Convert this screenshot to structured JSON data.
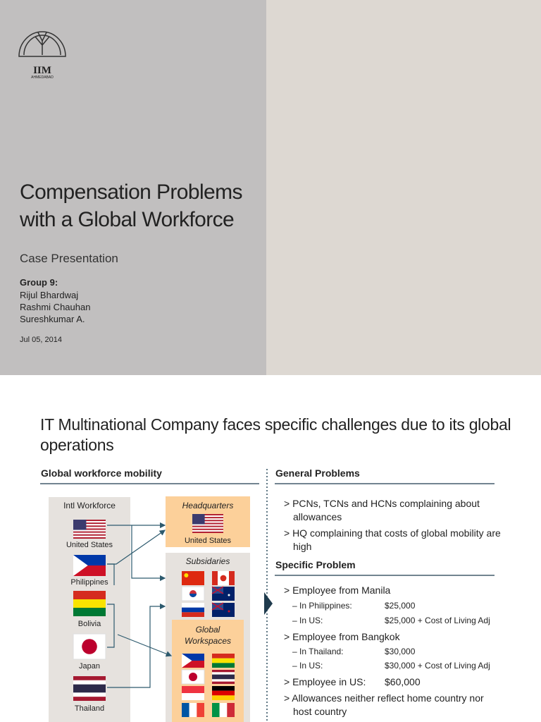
{
  "slide1": {
    "logo": {
      "name": "IIM",
      "city": "AHMEDABAD"
    },
    "title_lines": [
      "Compensation Problems",
      "with a Global Workforce"
    ],
    "subtitle": "Case Presentation",
    "group_label": "Group 9:",
    "members": [
      "Rijul Bhardwaj",
      "Rashmi Chauhan",
      "Sureshkumar A."
    ],
    "date": "Jul 05, 2014"
  },
  "slide2": {
    "title": "IT Multinational Company faces specific challenges due to its global operations",
    "left": {
      "heading": "Global workforce mobility",
      "intl_workforce": {
        "label": "Intl Workforce",
        "countries": [
          "United States",
          "Philippines",
          "Bolivia",
          "Japan",
          "Thailand"
        ]
      },
      "headquarters": {
        "label": "Headquarters",
        "country": "United States"
      },
      "subsidiaries": {
        "label": "Subsidaries"
      },
      "global_workspaces": {
        "label": "Global Workspaces"
      }
    },
    "general": {
      "heading": "General Problems",
      "items": [
        "> PCNs, TCNs and HCNs complaining about allowances",
        "> HQ complaining that costs of global mobility are high"
      ]
    },
    "specific": {
      "heading": "Specific Problem",
      "items": [
        {
          "text": "> Employee from Manila",
          "rows": [
            [
              "– In Philippines:",
              "$25,000"
            ],
            [
              "– In US:",
              "$25,000 + Cost of Living Adj"
            ]
          ]
        },
        {
          "text": "> Employee from Bangkok",
          "rows": [
            [
              "– In Thailand:",
              "$30,000"
            ],
            [
              "– In US:",
              "$30,000 + Cost of Living Adj"
            ]
          ]
        },
        {
          "text": "> Employee in US:",
          "amount": "$60,000"
        },
        {
          "text": "> Allowances neither reflect home country nor host country"
        }
      ]
    }
  }
}
